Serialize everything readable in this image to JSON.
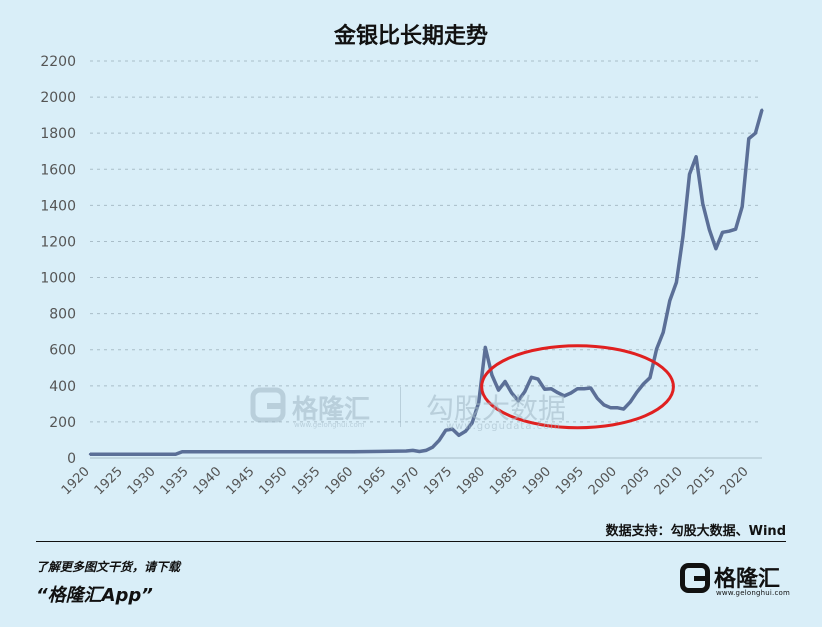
{
  "chart_data": {
    "type": "line",
    "title": "金银比长期走势",
    "xlabel": "",
    "ylabel": "",
    "xlim": [
      1920,
      2022
    ],
    "ylim": [
      0,
      2200
    ],
    "yticks": [
      0,
      200,
      400,
      600,
      800,
      1000,
      1200,
      1400,
      1600,
      1800,
      2000,
      2200
    ],
    "xticks": [
      1920,
      1925,
      1930,
      1935,
      1940,
      1945,
      1950,
      1955,
      1960,
      1965,
      1970,
      1975,
      1980,
      1985,
      1990,
      1995,
      2000,
      2005,
      2010,
      2015,
      2020
    ],
    "grid": true,
    "legend": "none",
    "line_color": "#5b6f97",
    "highlight": {
      "shape": "ellipse",
      "color": "#e02020",
      "x_range": [
        1984,
        2004
      ],
      "y_range": [
        190,
        600
      ]
    },
    "series": [
      {
        "x": [
          1920,
          1933,
          1934,
          1940,
          1950,
          1960,
          1968,
          1969,
          1970,
          1971,
          1972,
          1973,
          1974,
          1975,
          1976,
          1977,
          1978,
          1979,
          1980,
          1981,
          1982,
          1983,
          1984,
          1985,
          1986,
          1987,
          1988,
          1989,
          1990,
          1991,
          1992,
          1993,
          1994,
          1995,
          1996,
          1997,
          1998,
          1999,
          2000,
          2001,
          2002,
          2003,
          2004,
          2005,
          2006,
          2007,
          2008,
          2009,
          2010,
          2011,
          2012,
          2013,
          2014,
          2015,
          2016,
          2017,
          2018,
          2019,
          2020,
          2021,
          2022
        ],
        "values": [
          21,
          21,
          35,
          35,
          35,
          35,
          39,
          42,
          36,
          42,
          60,
          98,
          154,
          160,
          126,
          148,
          194,
          307,
          613,
          460,
          376,
          424,
          361,
          317,
          368,
          447,
          437,
          381,
          384,
          362,
          344,
          360,
          384,
          384,
          388,
          331,
          294,
          279,
          279,
          271,
          310,
          364,
          410,
          445,
          604,
          696,
          872,
          973,
          1225,
          1572,
          1669,
          1411,
          1266,
          1160,
          1251,
          1257,
          1268,
          1393,
          1770,
          1800,
          1930
        ]
      }
    ]
  },
  "watermark": {
    "brand_name": "格隆汇",
    "brand_url": "www.gelonghui.com",
    "partner_name": "勾股大数据",
    "partner_url": "www.gogudata.com"
  },
  "footer": {
    "source": "数据支持：勾股大数据、Wind",
    "promo": "了解更多图文干货，请下载",
    "app_name": "“格隆汇App”",
    "logo_name": "格隆汇",
    "logo_url": "www.gelonghui.com"
  }
}
